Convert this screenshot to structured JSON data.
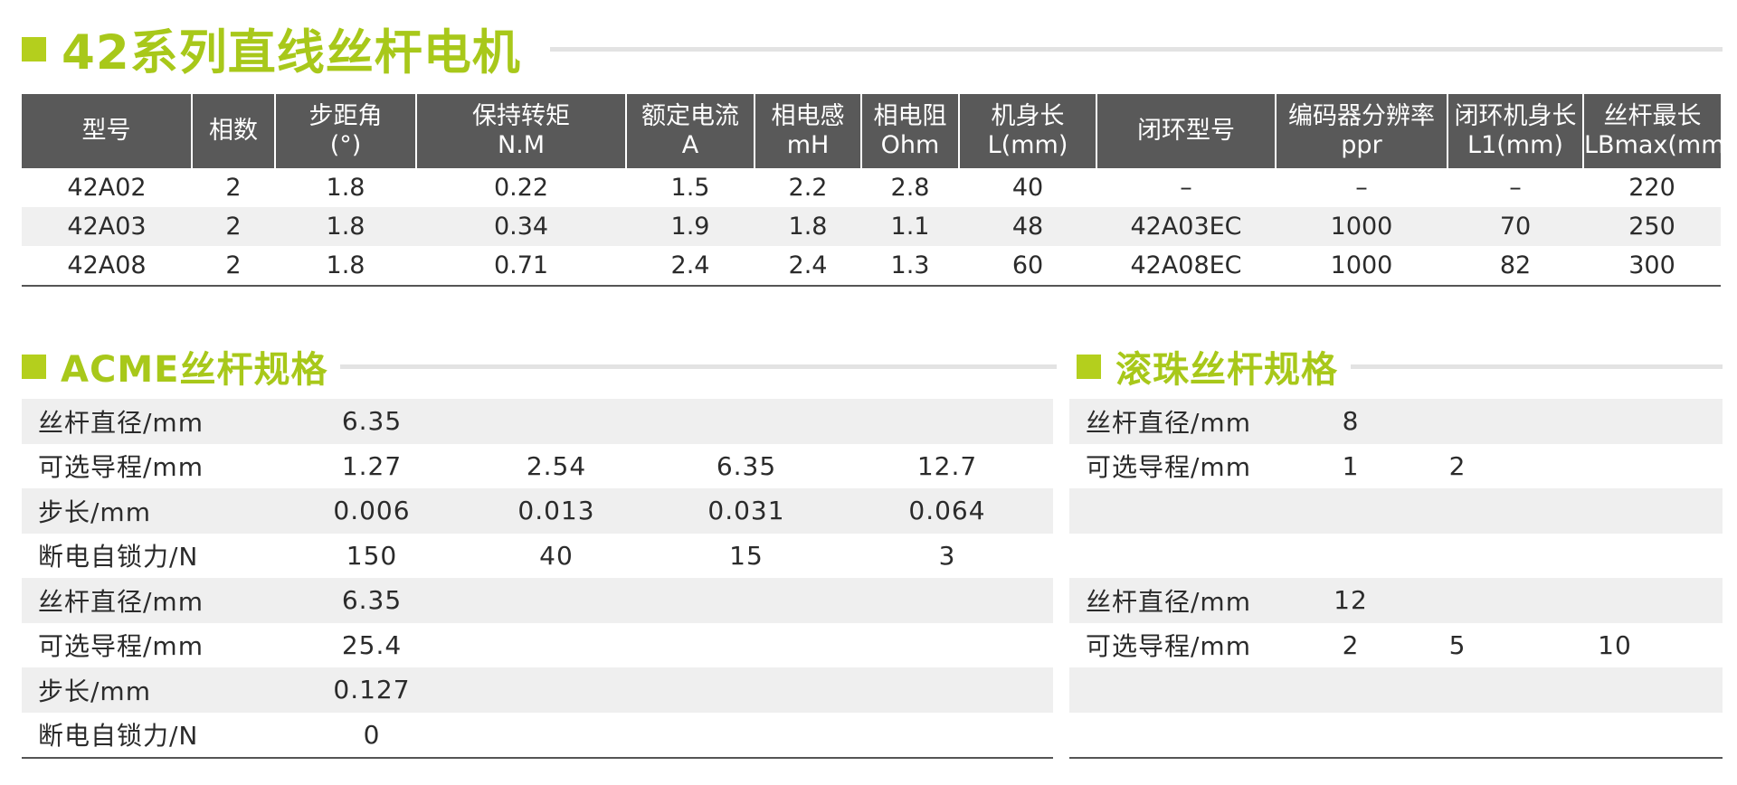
{
  "headings": {
    "main": "42系列直线丝杆电机",
    "acme": "ACME丝杆规格",
    "ball": "滚珠丝杆规格"
  },
  "motor_table": {
    "headers": [
      [
        "型号"
      ],
      [
        "相数"
      ],
      [
        "步距角",
        "(°)"
      ],
      [
        "保持转矩",
        "N.M"
      ],
      [
        "额定电流",
        "A"
      ],
      [
        "相电感",
        "mH"
      ],
      [
        "相电阻",
        "Ohm"
      ],
      [
        "机身长",
        "L(mm)"
      ],
      [
        "闭环型号"
      ],
      [
        "编码器分辨率",
        "ppr"
      ],
      [
        "闭环机身长",
        "L1(mm)"
      ],
      [
        "丝杆最长",
        "LBmax(mm)"
      ]
    ],
    "rows": [
      [
        "42A02",
        "2",
        "1.8",
        "0.22",
        "1.5",
        "2.2",
        "2.8",
        "40",
        "–",
        "–",
        "–",
        "220"
      ],
      [
        "42A03",
        "2",
        "1.8",
        "0.34",
        "1.9",
        "1.8",
        "1.1",
        "48",
        "42A03EC",
        "1000",
        "70",
        "250"
      ],
      [
        "42A08",
        "2",
        "1.8",
        "0.71",
        "2.4",
        "2.4",
        "1.3",
        "60",
        "42A08EC",
        "1000",
        "82",
        "300"
      ]
    ]
  },
  "acme_table": {
    "rows": [
      {
        "label": "丝杆直径/mm",
        "values": [
          "6.35",
          "",
          "",
          ""
        ]
      },
      {
        "label": "可选导程/mm",
        "values": [
          "1.27",
          "2.54",
          "6.35",
          "12.7"
        ]
      },
      {
        "label": "步长/mm",
        "values": [
          "0.006",
          "0.013",
          "0.031",
          "0.064"
        ]
      },
      {
        "label": "断电自锁力/N",
        "values": [
          "150",
          "40",
          "15",
          "3"
        ]
      },
      {
        "label": "丝杆直径/mm",
        "values": [
          "6.35",
          "",
          "",
          ""
        ]
      },
      {
        "label": "可选导程/mm",
        "values": [
          "25.4",
          "",
          "",
          ""
        ]
      },
      {
        "label": "步长/mm",
        "values": [
          "0.127",
          "",
          "",
          ""
        ]
      },
      {
        "label": "断电自锁力/N",
        "values": [
          "0",
          "",
          "",
          ""
        ]
      }
    ]
  },
  "ball_table": {
    "rows": [
      {
        "label": "丝杆直径/mm",
        "values": [
          "8",
          "",
          ""
        ]
      },
      {
        "label": "可选导程/mm",
        "values": [
          "1",
          "2",
          ""
        ]
      },
      {
        "label": "",
        "values": [
          "",
          "",
          ""
        ]
      },
      {
        "label": "",
        "values": [
          "",
          "",
          ""
        ]
      },
      {
        "label": "丝杆直径/mm",
        "values": [
          "12",
          "",
          ""
        ]
      },
      {
        "label": "可选导程/mm",
        "values": [
          "2",
          "5",
          "10"
        ]
      },
      {
        "label": "",
        "values": [
          "",
          "",
          ""
        ]
      },
      {
        "label": "",
        "values": [
          "",
          "",
          ""
        ]
      }
    ]
  },
  "colors": {
    "accent": "#a8c81a",
    "header_bg": "#595959",
    "stripe": "#efefef"
  }
}
